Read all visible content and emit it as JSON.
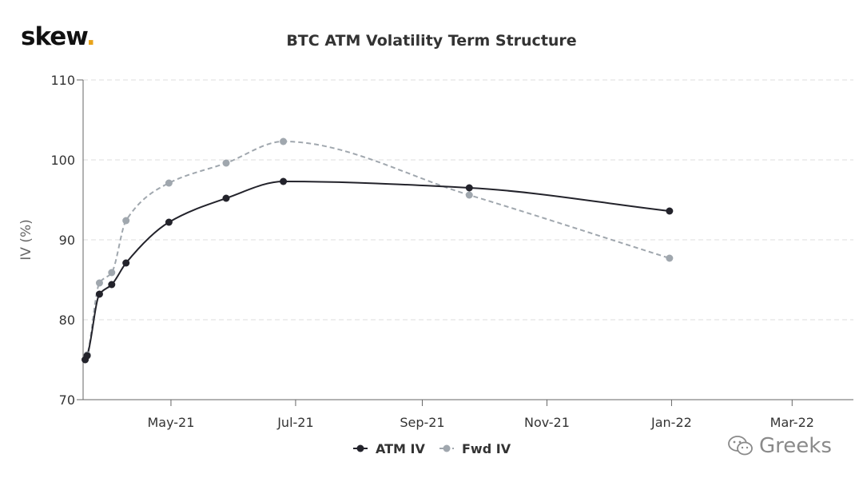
{
  "header": {
    "logo_text": "skew",
    "logo_dot": ".",
    "title": "BTC ATM Volatility Term Structure"
  },
  "watermark": {
    "text": "Greeks",
    "icon": "wechat-icon"
  },
  "colors": {
    "atm": "#23232b",
    "fwd": "#a0a7ae",
    "logo_dot": "#e8a31a",
    "grid": "#dddddd"
  },
  "chart_data": {
    "type": "line",
    "title": "BTC ATM Volatility Term Structure",
    "xlabel": "",
    "ylabel": "IV (%)",
    "ylim": [
      70,
      110
    ],
    "yticks": [
      70,
      80,
      90,
      100,
      110
    ],
    "xlim": [
      "2021-03-19",
      "2022-03-31"
    ],
    "xticks": [
      {
        "date": "2021-05-01",
        "label": "May-21"
      },
      {
        "date": "2021-07-01",
        "label": "Jul-21"
      },
      {
        "date": "2021-09-01",
        "label": "Sep-21"
      },
      {
        "date": "2021-11-01",
        "label": "Nov-21"
      },
      {
        "date": "2022-01-01",
        "label": "Jan-22"
      },
      {
        "date": "2022-03-01",
        "label": "Mar-22"
      }
    ],
    "grid": true,
    "legend_position": "bottom-center",
    "series": [
      {
        "name": "ATM IV",
        "style": "solid",
        "points": [
          {
            "x": "2021-03-20",
            "y": 75.0
          },
          {
            "x": "2021-03-21",
            "y": 75.5
          },
          {
            "x": "2021-03-27",
            "y": 83.2
          },
          {
            "x": "2021-04-02",
            "y": 84.4
          },
          {
            "x": "2021-04-09",
            "y": 87.1
          },
          {
            "x": "2021-04-30",
            "y": 92.2
          },
          {
            "x": "2021-05-28",
            "y": 95.2
          },
          {
            "x": "2021-06-25",
            "y": 97.3
          },
          {
            "x": "2021-09-24",
            "y": 96.5
          },
          {
            "x": "2021-12-31",
            "y": 93.6
          }
        ]
      },
      {
        "name": "Fwd IV",
        "style": "dashed",
        "points": [
          {
            "x": "2021-03-20",
            "y": 75.0
          },
          {
            "x": "2021-03-21",
            "y": 75.6
          },
          {
            "x": "2021-03-27",
            "y": 84.6
          },
          {
            "x": "2021-04-02",
            "y": 85.9
          },
          {
            "x": "2021-04-09",
            "y": 92.4
          },
          {
            "x": "2021-04-30",
            "y": 97.1
          },
          {
            "x": "2021-05-28",
            "y": 99.6
          },
          {
            "x": "2021-06-25",
            "y": 102.3
          },
          {
            "x": "2021-09-24",
            "y": 95.6
          },
          {
            "x": "2021-12-31",
            "y": 87.7
          }
        ]
      }
    ]
  }
}
